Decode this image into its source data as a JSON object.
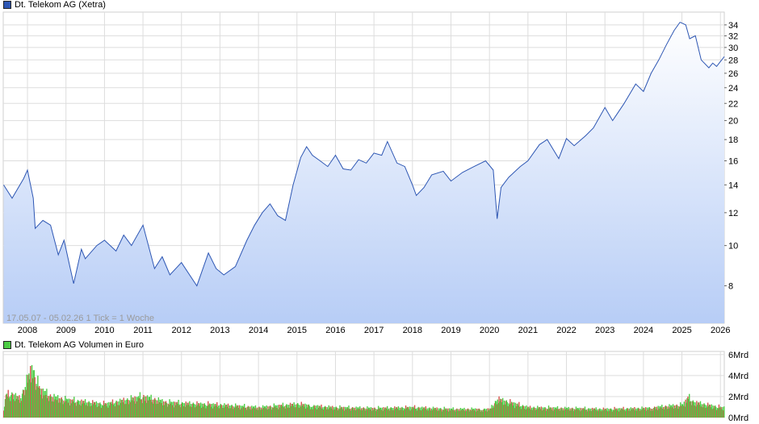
{
  "colors": {
    "price_line": "#2d56b3",
    "area_top": "#ffffff",
    "area_bottom": "#b7cdf6",
    "grid": "#dddddd",
    "plot_bg": "#ffffff",
    "vol_up": "#4dcc45",
    "vol_down": "#d9534f"
  },
  "main_legend": {
    "swatch_color": "#2d56b3",
    "label": "Dt. Telekom AG (Xetra)"
  },
  "volume_legend": {
    "swatch_color": "#4dcc45",
    "label": "Dt. Telekom AG Volumen in Euro"
  },
  "footnote": "17.05.07 - 05.02.26   1 Tick = 1 Woche",
  "chart_data": [
    {
      "type": "line",
      "series": [
        {
          "name": "Dt. Telekom AG (Xetra)",
          "x": [
            2007.38,
            2007.6,
            2007.9,
            2008.0,
            2008.15,
            2008.2,
            2008.4,
            2008.6,
            2008.8,
            2008.95,
            2009.2,
            2009.4,
            2009.5,
            2009.8,
            2010.0,
            2010.3,
            2010.5,
            2010.7,
            2011.0,
            2011.3,
            2011.5,
            2011.7,
            2012.0,
            2012.4,
            2012.7,
            2012.9,
            2013.1,
            2013.4,
            2013.7,
            2013.9,
            2014.1,
            2014.3,
            2014.5,
            2014.7,
            2014.9,
            2015.1,
            2015.25,
            2015.4,
            2015.6,
            2015.8,
            2016.0,
            2016.2,
            2016.4,
            2016.6,
            2016.8,
            2017.0,
            2017.2,
            2017.35,
            2017.6,
            2017.8,
            2018.0,
            2018.1,
            2018.3,
            2018.5,
            2018.8,
            2019.0,
            2019.3,
            2019.6,
            2019.9,
            2020.1,
            2020.2,
            2020.3,
            2020.5,
            2020.8,
            2021.0,
            2021.3,
            2021.5,
            2021.8,
            2022.0,
            2022.2,
            2022.5,
            2022.7,
            2023.0,
            2023.2,
            2023.5,
            2023.8,
            2024.0,
            2024.2,
            2024.4,
            2024.6,
            2024.8,
            2024.95,
            2025.1,
            2025.2,
            2025.35,
            2025.5,
            2025.7,
            2025.8,
            2025.9,
            2026.1
          ],
          "values": [
            14.0,
            13.0,
            14.5,
            15.2,
            13.0,
            11.0,
            11.5,
            11.2,
            9.5,
            10.3,
            8.1,
            9.8,
            9.3,
            10.0,
            10.3,
            9.7,
            10.6,
            10.0,
            11.2,
            8.8,
            9.4,
            8.5,
            9.1,
            8.0,
            9.6,
            8.8,
            8.5,
            8.9,
            10.3,
            11.2,
            12.0,
            12.6,
            11.8,
            11.5,
            14.0,
            16.3,
            17.3,
            16.5,
            16.0,
            15.5,
            16.5,
            15.3,
            15.2,
            16.1,
            15.8,
            16.7,
            16.5,
            17.8,
            15.8,
            15.5,
            14.0,
            13.2,
            13.8,
            14.8,
            15.1,
            14.3,
            15.0,
            15.5,
            16.0,
            15.2,
            11.6,
            13.8,
            14.6,
            15.5,
            16.0,
            17.5,
            18.0,
            16.2,
            18.1,
            17.4,
            18.4,
            19.2,
            21.5,
            20.0,
            22.0,
            24.5,
            23.5,
            26.0,
            28.0,
            30.5,
            33.0,
            34.5,
            34.0,
            31.5,
            32.0,
            28.0,
            26.8,
            27.5,
            27.0,
            28.5
          ]
        }
      ],
      "x_ticks": [
        "2008",
        "2009",
        "2010",
        "2011",
        "2012",
        "2013",
        "2014",
        "2015",
        "2016",
        "2017",
        "2018",
        "2019",
        "2020",
        "2021",
        "2022",
        "2023",
        "2024",
        "2025",
        "2026"
      ],
      "y_ticks": [
        "8",
        "10",
        "12",
        "14",
        "16",
        "18",
        "20",
        "22",
        "24",
        "26",
        "28",
        "30",
        "32",
        "34"
      ],
      "y_scale": "log",
      "ylim": [
        6.5,
        36.5
      ],
      "xlim": [
        2007.37,
        2026.1
      ],
      "grid": true
    },
    {
      "type": "bar",
      "series": [
        {
          "name": "Dt. Telekom AG Volumen in Euro",
          "x": [
            2007.4,
            2007.6,
            2007.8,
            2008.0,
            2008.1,
            2008.3,
            2008.6,
            2009.0,
            2010.0,
            2011.0,
            2011.6,
            2012.0,
            2013.0,
            2014.0,
            2015.0,
            2015.6,
            2016.0,
            2017.0,
            2018.0,
            2019.0,
            2020.0,
            2020.2,
            2021.0,
            2022.0,
            2023.0,
            2024.0,
            2025.0,
            2025.15,
            2025.3,
            2026.0
          ],
          "values": [
            2.6,
            2.8,
            2.2,
            4.7,
            6.0,
            3.4,
            2.5,
            2.1,
            1.6,
            2.5,
            1.8,
            1.7,
            1.5,
            1.2,
            1.6,
            1.3,
            1.2,
            1.1,
            1.2,
            1.0,
            1.0,
            2.2,
            1.2,
            1.1,
            1.0,
            1.1,
            1.5,
            2.4,
            1.8,
            1.2
          ]
        }
      ],
      "y_ticks": [
        "0Mrd",
        "2Mrd",
        "4Mrd",
        "6Mrd"
      ],
      "ylim": [
        0,
        6.3
      ],
      "grid": true
    }
  ]
}
